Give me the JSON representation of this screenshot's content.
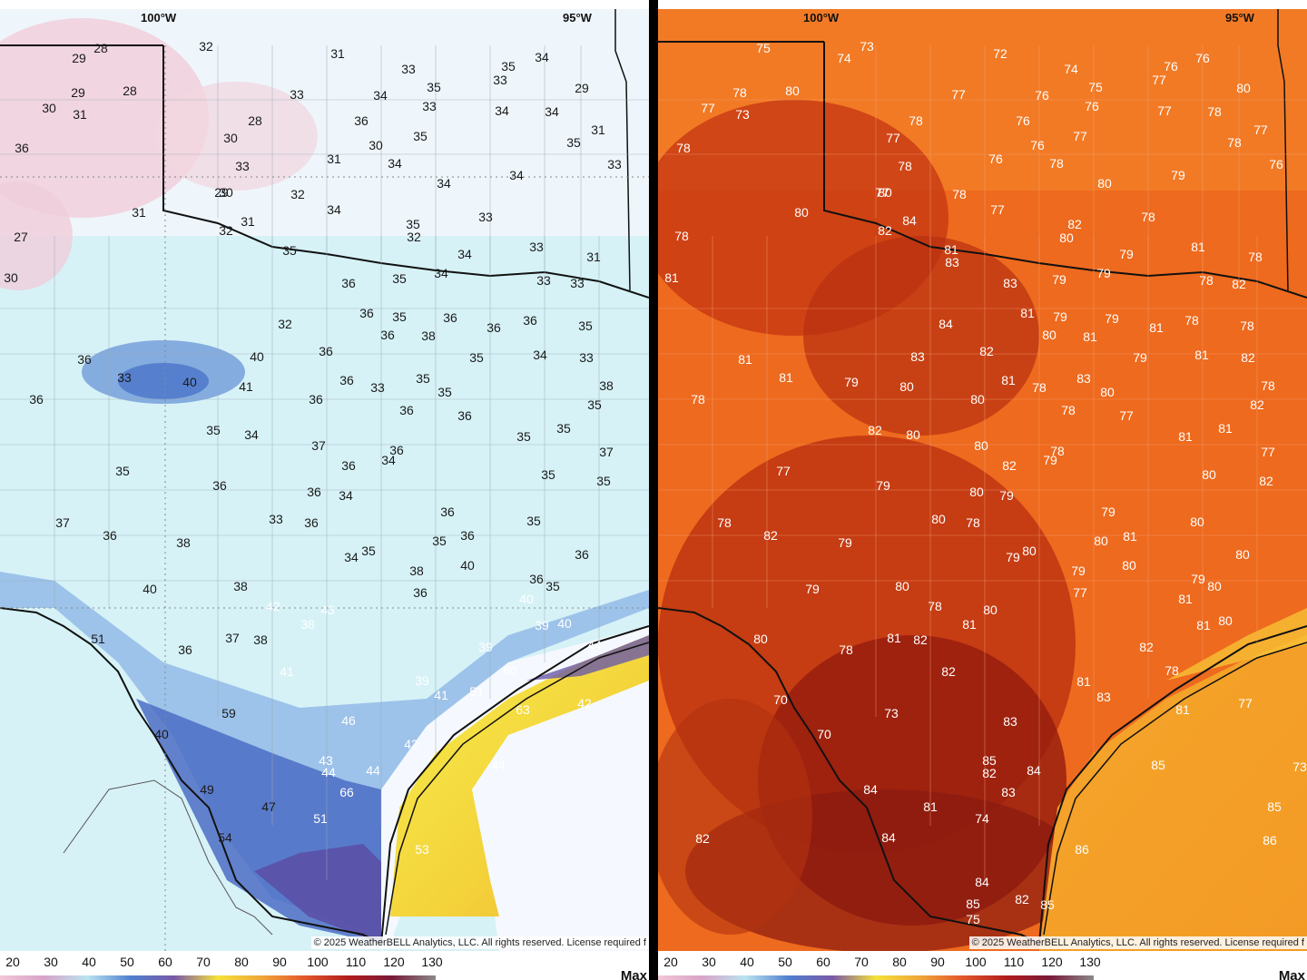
{
  "panels": [
    {
      "id": "left",
      "lon_labels": [
        "100°W",
        "95°W"
      ],
      "copyright": "© 2025 WeatherBELL Analytics, LLC. All rights reserved. License required f",
      "legend": {
        "ticks": [
          "20",
          "30",
          "40",
          "50",
          "60",
          "70",
          "80",
          "90",
          "100",
          "110",
          "120",
          "130"
        ],
        "max_label": "Max"
      },
      "values": [
        "28",
        "29",
        "32",
        "31",
        "33",
        "35",
        "34",
        "33",
        "35",
        "34",
        "30",
        "29",
        "28",
        "33",
        "31",
        "28",
        "30",
        "36",
        "35",
        "33",
        "34",
        "34",
        "31",
        "29",
        "36",
        "33",
        "31",
        "30",
        "34",
        "35",
        "33",
        "29",
        "32",
        "34",
        "30",
        "34",
        "34",
        "35",
        "33",
        "31",
        "31",
        "32",
        "33",
        "34",
        "31",
        "27",
        "32",
        "35",
        "34",
        "33",
        "36",
        "35",
        "30",
        "36",
        "35",
        "36",
        "33",
        "32",
        "36",
        "36",
        "35",
        "36",
        "38",
        "33",
        "36",
        "35",
        "34",
        "36",
        "40",
        "36",
        "33",
        "40",
        "41",
        "38",
        "35",
        "33",
        "35",
        "36",
        "36",
        "36",
        "35",
        "36",
        "35",
        "34",
        "35",
        "35",
        "37",
        "36",
        "35",
        "36",
        "34",
        "37",
        "36",
        "36",
        "34",
        "35",
        "35",
        "33",
        "36",
        "37",
        "36",
        "35",
        "36",
        "35",
        "38",
        "36",
        "34",
        "35",
        "36",
        "40",
        "38",
        "36",
        "40",
        "38",
        "35",
        "36",
        "42",
        "43",
        "40",
        "37",
        "38",
        "38",
        "39",
        "36",
        "51",
        "40",
        "39",
        "41",
        "44",
        "60",
        "39",
        "59",
        "41",
        "40",
        "51",
        "42",
        "46",
        "63",
        "42",
        "43",
        "44",
        "44",
        "44",
        "66",
        "47",
        "51",
        "49",
        "54",
        "53"
      ]
    },
    {
      "id": "right",
      "lon_labels": [
        "100°W",
        "95°W"
      ],
      "copyright": "© 2025 WeatherBELL Analytics, LLC. All rights reserved. License required f",
      "legend": {
        "ticks": [
          "20",
          "30",
          "40",
          "50",
          "60",
          "70",
          "80",
          "90",
          "100",
          "110",
          "120",
          "130"
        ],
        "max_label": "Max"
      },
      "values": [
        "75",
        "73",
        "74",
        "72",
        "76",
        "74",
        "75",
        "76",
        "77",
        "78",
        "80",
        "77",
        "76",
        "76",
        "77",
        "76",
        "73",
        "78",
        "77",
        "78",
        "80",
        "77",
        "76",
        "78",
        "77",
        "76",
        "78",
        "78",
        "77",
        "76",
        "78",
        "80",
        "79",
        "78",
        "80",
        "77",
        "78",
        "77",
        "80",
        "84",
        "82",
        "79",
        "82",
        "80",
        "81",
        "79",
        "81",
        "78",
        "83",
        "83",
        "79",
        "78",
        "78",
        "82",
        "81",
        "79",
        "81",
        "84",
        "79",
        "81",
        "80",
        "81",
        "78",
        "83",
        "82",
        "78",
        "80",
        "79",
        "81",
        "82",
        "81",
        "81",
        "79",
        "81",
        "80",
        "78",
        "83",
        "80",
        "78",
        "78",
        "82",
        "78",
        "77",
        "81",
        "82",
        "80",
        "81",
        "80",
        "78",
        "79",
        "77",
        "77",
        "82",
        "80",
        "79",
        "80",
        "79",
        "82",
        "80",
        "78",
        "79",
        "80",
        "80",
        "78",
        "82",
        "79",
        "79",
        "80",
        "80",
        "81",
        "80",
        "79",
        "79",
        "80",
        "79",
        "80",
        "77",
        "78",
        "80",
        "81",
        "81",
        "81",
        "80",
        "80",
        "78",
        "81",
        "82",
        "82",
        "82",
        "81",
        "78",
        "83",
        "81",
        "77",
        "70",
        "70",
        "73",
        "83",
        "84",
        "85",
        "85",
        "82",
        "83",
        "84",
        "81",
        "74",
        "73",
        "85",
        "84",
        "84",
        "85",
        "75",
        "82",
        "85",
        "86",
        "86",
        "82",
        "80",
        "82",
        "73",
        "75"
      ]
    }
  ]
}
